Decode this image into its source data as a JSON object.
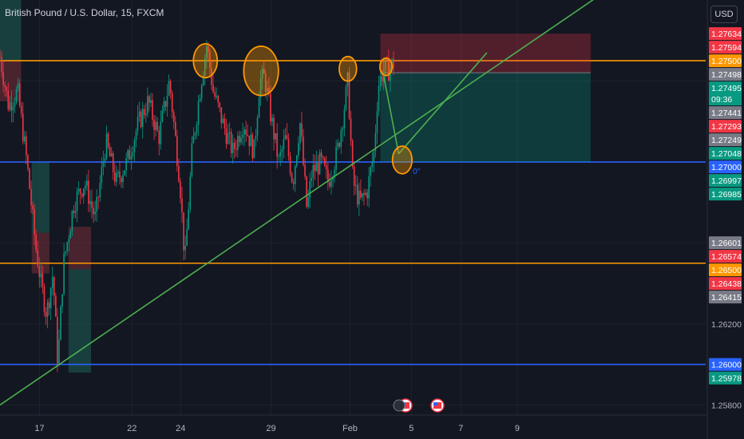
{
  "header": {
    "symbol_title": "British Pound / U.S. Dollar, 15, FXCM",
    "currency_button": "USD"
  },
  "chart_data": {
    "type": "candlestick",
    "price_scale": {
      "range": [
        1.2575,
        1.278
      ],
      "labels": [
        {
          "value": 1.27634,
          "text": "1.27634",
          "color": "#f23645"
        },
        {
          "value": 1.27594,
          "text": "1.27594",
          "color": "#f23645"
        },
        {
          "value": 1.275,
          "text": "1.27500",
          "color": "#ff9800"
        },
        {
          "value": 1.27498,
          "text": "1.27498",
          "color": "#787b86"
        },
        {
          "value": 1.27495,
          "text": "1.27495",
          "color": "#089981",
          "sub": "09:36"
        },
        {
          "value": 1.27441,
          "text": "1.27441",
          "color": "#787b86"
        },
        {
          "value": 1.27293,
          "text": "1.27293",
          "color": "#f23645"
        },
        {
          "value": 1.27249,
          "text": "1.27249",
          "color": "#787b86"
        },
        {
          "value": 1.27048,
          "text": "1.27048",
          "color": "#089981"
        },
        {
          "value": 1.27,
          "text": "1.27000",
          "color": "#2962ff"
        },
        {
          "value": 1.26997,
          "text": "1.26997",
          "color": "#089981"
        },
        {
          "value": 1.26985,
          "text": "1.26985",
          "color": "#089981"
        },
        {
          "value": 1.26601,
          "text": "1.26601",
          "color": "#787b86"
        },
        {
          "value": 1.26574,
          "text": "1.26574",
          "color": "#f23645"
        },
        {
          "value": 1.265,
          "text": "1.26500",
          "color": "#ff9800"
        },
        {
          "value": 1.26438,
          "text": "1.26438",
          "color": "#f23645"
        },
        {
          "value": 1.26415,
          "text": "1.26415",
          "color": "#787b86"
        },
        {
          "value": 1.262,
          "text": "1.26200",
          "color": ""
        },
        {
          "value": 1.26,
          "text": "1.26000",
          "color": "#2962ff"
        },
        {
          "value": 1.25978,
          "text": "1.25978",
          "color": "#089981"
        },
        {
          "value": 1.258,
          "text": "1.25800",
          "color": ""
        }
      ]
    },
    "time_axis": [
      {
        "label": "17",
        "t": 0.056
      },
      {
        "label": "22",
        "t": 0.187
      },
      {
        "label": "24",
        "t": 0.256
      },
      {
        "label": "29",
        "t": 0.384
      },
      {
        "label": "Feb",
        "t": 0.496
      },
      {
        "label": "5",
        "t": 0.583
      },
      {
        "label": "7",
        "t": 0.653
      },
      {
        "label": "9",
        "t": 0.733
      }
    ],
    "horizontal_levels": [
      {
        "value": 1.275,
        "color": "#ff9800"
      },
      {
        "value": 1.27,
        "color": "#2962ff"
      },
      {
        "value": 1.265,
        "color": "#ff9800"
      },
      {
        "value": 1.26,
        "color": "#2962ff"
      }
    ],
    "position_tool": {
      "t_start": 0.539,
      "t_end": 0.837,
      "stop_price": 1.27634,
      "entry_price": 1.27441,
      "target_price": 1.27
    },
    "trendlines": [
      {
        "t1": 0.0,
        "p1": 1.258,
        "t2": 0.903,
        "p2": 1.2795,
        "color": "#4caf50"
      },
      {
        "t1": 0.544,
        "p1": 1.2742,
        "t2": 0.565,
        "p2": 1.2704,
        "color": "#4caf50"
      },
      {
        "t1": 0.565,
        "p1": 1.2704,
        "t2": 0.69,
        "p2": 1.2754,
        "color": "#4caf50"
      }
    ],
    "annotations": [
      {
        "text": "0°",
        "t": 0.585,
        "p": 1.2694,
        "color": "#2962ff"
      }
    ],
    "markers": [
      {
        "t": 0.291,
        "p": 1.275,
        "r": 3.3
      },
      {
        "t": 0.37,
        "p": 1.2745,
        "r": 4.8
      },
      {
        "t": 0.493,
        "p": 1.2746,
        "r": 2.4
      },
      {
        "t": 0.547,
        "p": 1.2747,
        "r": 1.7
      },
      {
        "t": 0.57,
        "p": 1.2701,
        "r": 2.7
      }
    ],
    "zones": [
      {
        "t1": 0.0,
        "t2": 0.03,
        "p1": 1.278,
        "p2": 1.275,
        "color": "#1b4d47"
      },
      {
        "t1": 0.0,
        "t2": 0.03,
        "p1": 1.275,
        "p2": 1.273,
        "color": "#5c2a33"
      },
      {
        "t1": 0.045,
        "t2": 0.07,
        "p1": 1.27,
        "p2": 1.2665,
        "color": "#1b4d47"
      },
      {
        "t1": 0.045,
        "t2": 0.07,
        "p1": 1.2665,
        "p2": 1.2645,
        "color": "#5c2a33"
      },
      {
        "t1": 0.097,
        "t2": 0.129,
        "p1": 1.2668,
        "p2": 1.2647,
        "color": "#5c2a33"
      },
      {
        "t1": 0.097,
        "t2": 0.129,
        "p1": 1.2647,
        "p2": 1.2596,
        "color": "#1b4d47"
      }
    ],
    "price_path": [
      [
        0.0,
        1.2752
      ],
      [
        0.012,
        1.2728
      ],
      [
        0.025,
        1.2735
      ],
      [
        0.038,
        1.27
      ],
      [
        0.05,
        1.266
      ],
      [
        0.058,
        1.264
      ],
      [
        0.066,
        1.2625
      ],
      [
        0.075,
        1.2645
      ],
      [
        0.082,
        1.26
      ],
      [
        0.09,
        1.265
      ],
      [
        0.105,
        1.268
      ],
      [
        0.12,
        1.269
      ],
      [
        0.135,
        1.2672
      ],
      [
        0.15,
        1.271
      ],
      [
        0.165,
        1.269
      ],
      [
        0.18,
        1.27
      ],
      [
        0.195,
        1.2718
      ],
      [
        0.21,
        1.273
      ],
      [
        0.225,
        1.2712
      ],
      [
        0.24,
        1.274
      ],
      [
        0.255,
        1.269
      ],
      [
        0.262,
        1.265
      ],
      [
        0.272,
        1.2705
      ],
      [
        0.285,
        1.274
      ],
      [
        0.293,
        1.2758
      ],
      [
        0.302,
        1.2735
      ],
      [
        0.315,
        1.272
      ],
      [
        0.33,
        1.2705
      ],
      [
        0.345,
        1.272
      ],
      [
        0.36,
        1.2705
      ],
      [
        0.368,
        1.274
      ],
      [
        0.375,
        1.2742
      ],
      [
        0.385,
        1.272
      ],
      [
        0.395,
        1.27
      ],
      [
        0.405,
        1.2712
      ],
      [
        0.415,
        1.269
      ],
      [
        0.425,
        1.272
      ],
      [
        0.435,
        1.2676
      ],
      [
        0.442,
        1.2695
      ],
      [
        0.455,
        1.27
      ],
      [
        0.465,
        1.269
      ],
      [
        0.478,
        1.2705
      ],
      [
        0.487,
        1.2725
      ],
      [
        0.493,
        1.274
      ],
      [
        0.5,
        1.269
      ],
      [
        0.51,
        1.268
      ],
      [
        0.52,
        1.2685
      ],
      [
        0.53,
        1.2705
      ],
      [
        0.536,
        1.2738
      ],
      [
        0.545,
        1.2747
      ],
      [
        0.55,
        1.2745
      ],
      [
        0.555,
        1.2748
      ],
      [
        0.56,
        1.2749
      ]
    ]
  }
}
